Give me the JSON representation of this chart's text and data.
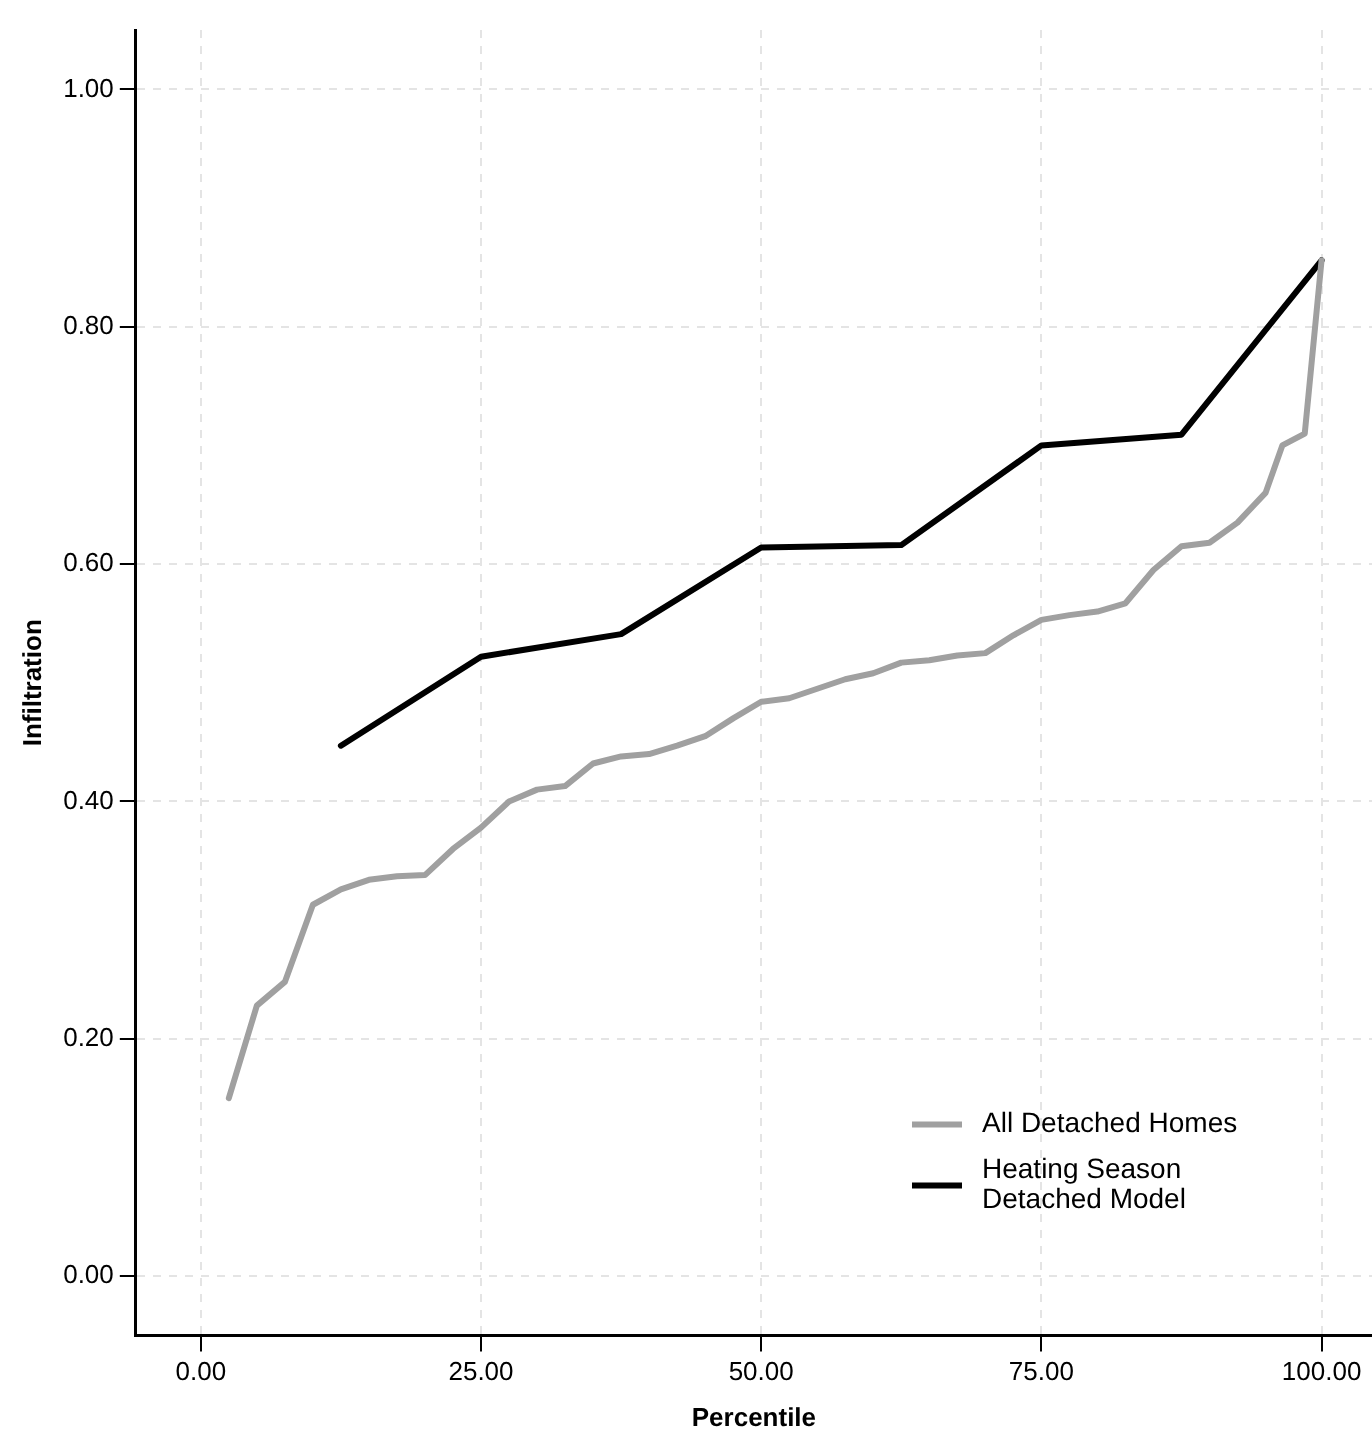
{
  "chart_data": {
    "type": "line",
    "xlabel": "Percentile",
    "ylabel": "Infiltration",
    "xlim": [
      -5.8,
      104.5
    ],
    "ylim": [
      -0.05,
      1.05
    ],
    "xticks": [
      {
        "value": 0,
        "label": "0.00"
      },
      {
        "value": 25,
        "label": "25.00"
      },
      {
        "value": 50,
        "label": "50.00"
      },
      {
        "value": 75,
        "label": "75.00"
      },
      {
        "value": 100,
        "label": "100.00"
      }
    ],
    "yticks": [
      {
        "value": 0,
        "label": "0.00"
      },
      {
        "value": 0.2,
        "label": "0.20"
      },
      {
        "value": 0.4,
        "label": "0.40"
      },
      {
        "value": 0.6,
        "label": "0.60"
      },
      {
        "value": 0.8,
        "label": "0.80"
      },
      {
        "value": 1,
        "label": "1.00"
      }
    ],
    "grid": true,
    "legend": "bottom right",
    "marker": "none",
    "line_style": "solid",
    "series": [
      {
        "name": "All Detached Homes",
        "color": "#a0a0a0",
        "x": [
          2.5,
          5,
          7.5,
          10,
          12.5,
          15,
          17.5,
          20,
          22.5,
          25,
          27.5,
          30,
          32.5,
          35,
          37.5,
          40,
          42.5,
          45,
          47.5,
          50,
          52.5,
          55,
          57.5,
          60,
          62.5,
          65,
          67.5,
          70,
          72.5,
          75,
          77.5,
          80,
          82.5,
          85,
          87.5,
          90,
          92.5,
          95,
          96.5,
          98.5,
          100
        ],
        "values": [
          0.15,
          0.228,
          0.248,
          0.313,
          0.326,
          0.334,
          0.337,
          0.338,
          0.36,
          0.378,
          0.4,
          0.41,
          0.413,
          0.432,
          0.438,
          0.44,
          0.447,
          0.455,
          0.47,
          0.484,
          0.487,
          0.495,
          0.503,
          0.508,
          0.517,
          0.519,
          0.523,
          0.525,
          0.54,
          0.553,
          0.557,
          0.56,
          0.567,
          0.595,
          0.615,
          0.618,
          0.635,
          0.66,
          0.7,
          0.71,
          0.856
        ]
      },
      {
        "name": "Heating Season Detached Model",
        "color": "#000000",
        "x": [
          12.5,
          25,
          37.5,
          50,
          62.5,
          75,
          87.5,
          100
        ],
        "values": [
          0.447,
          0.522,
          0.541,
          0.614,
          0.616,
          0.7,
          0.709,
          0.856
        ]
      }
    ]
  }
}
